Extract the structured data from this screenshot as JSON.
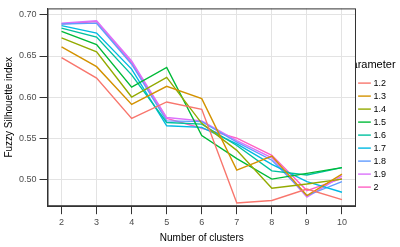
{
  "chart_data": {
    "type": "line",
    "x_label": "Number of clusters",
    "y_label": "Fuzzy Silhouette index",
    "legend_title": "Parameter m",
    "legend": "right",
    "grid": true,
    "x": [
      2,
      3,
      4,
      5,
      6,
      7,
      8,
      9,
      10
    ],
    "xlim": [
      1.6,
      10.4
    ],
    "xticks": [
      2,
      3,
      4,
      5,
      6,
      7,
      8,
      9,
      10
    ],
    "ylim": [
      0.467,
      0.708
    ],
    "yticks": [
      {
        "value": 0.5,
        "label": "0.50"
      },
      {
        "value": 0.55,
        "label": "0.55"
      },
      {
        "value": 0.6,
        "label": "0.60"
      },
      {
        "value": 0.65,
        "label": "0.65"
      },
      {
        "value": 0.7,
        "label": "0.70"
      }
    ],
    "series": [
      {
        "name": "1.2",
        "color": "#F8766D",
        "values": [
          0.648,
          0.623,
          0.574,
          0.594,
          0.585,
          0.471,
          0.474,
          0.488,
          0.475
        ]
      },
      {
        "name": "1.3",
        "color": "#D39200",
        "values": [
          0.661,
          0.637,
          0.591,
          0.613,
          0.598,
          0.511,
          0.528,
          0.48,
          0.506
        ]
      },
      {
        "name": "1.4",
        "color": "#93AA00",
        "values": [
          0.672,
          0.655,
          0.6,
          0.624,
          0.568,
          0.535,
          0.489,
          0.494,
          0.5
        ]
      },
      {
        "name": "1.5",
        "color": "#00BA38",
        "values": [
          0.68,
          0.664,
          0.612,
          0.636,
          0.553,
          0.525,
          0.5,
          0.507,
          0.514
        ]
      },
      {
        "name": "1.6",
        "color": "#00C19F",
        "values": [
          0.684,
          0.673,
          0.627,
          0.569,
          0.567,
          0.541,
          0.51,
          0.505,
          0.514
        ]
      },
      {
        "name": "1.7",
        "color": "#00B9E3",
        "values": [
          0.687,
          0.678,
          0.634,
          0.565,
          0.563,
          0.543,
          0.518,
          0.497,
          0.484
        ]
      },
      {
        "name": "1.8",
        "color": "#619CFF",
        "values": [
          0.689,
          0.69,
          0.64,
          0.571,
          0.57,
          0.545,
          0.523,
          0.48,
          0.497
        ]
      },
      {
        "name": "1.9",
        "color": "#DB72FB",
        "values": [
          0.69,
          0.693,
          0.644,
          0.575,
          0.571,
          0.547,
          0.526,
          0.478,
          0.504
        ]
      },
      {
        "name": "2",
        "color": "#FF61C3",
        "values": [
          0.689,
          0.692,
          0.642,
          0.574,
          0.562,
          0.55,
          0.529,
          0.486,
          0.501
        ]
      }
    ]
  }
}
